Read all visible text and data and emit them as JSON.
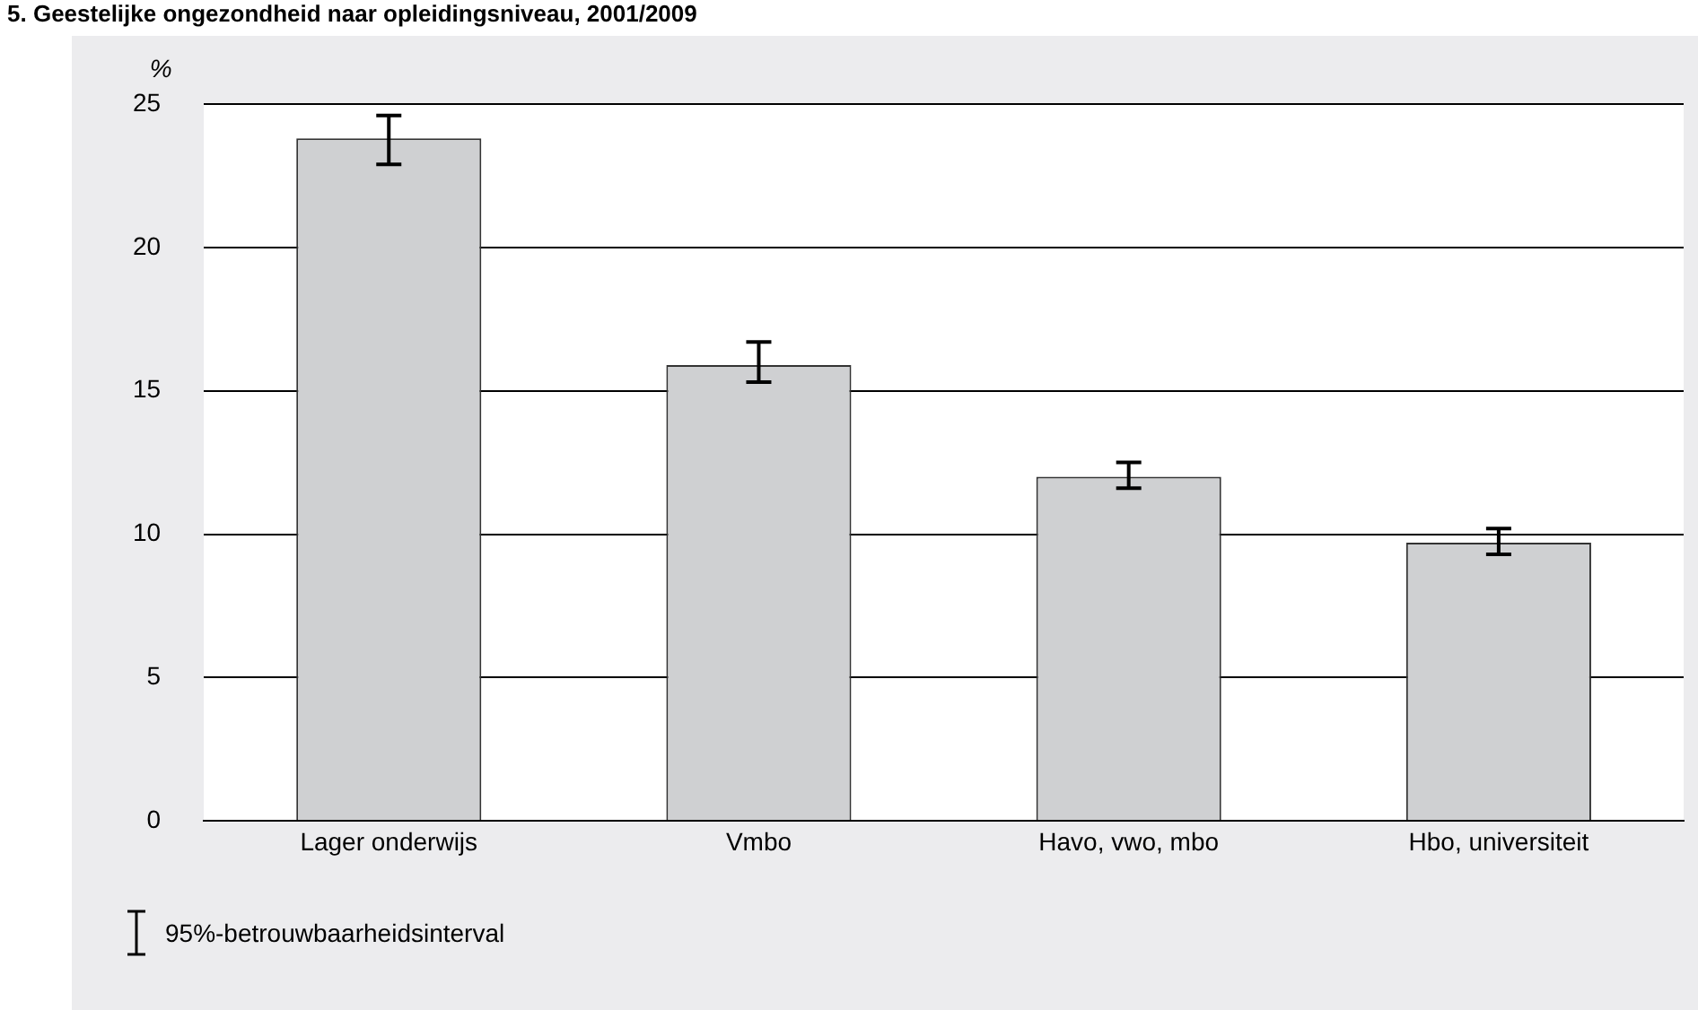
{
  "chart_data": {
    "type": "bar",
    "title": "5. Geestelijke ongezondheid naar opleidingsniveau, 2001/2009",
    "ylabel": "%",
    "categories": [
      "Lager onderwijs",
      "Vmbo",
      "Havo, vwo, mbo",
      "Hbo, universiteit"
    ],
    "values": [
      23.8,
      15.9,
      12.0,
      9.7
    ],
    "color": "#cfd0d2",
    "errors": [
      [
        22.9,
        24.6
      ],
      [
        15.3,
        16.7
      ],
      [
        11.6,
        12.5
      ],
      [
        9.3,
        10.2
      ]
    ],
    "ylim": [
      0,
      25
    ],
    "yticks": [
      0,
      5,
      10,
      15,
      20,
      25
    ],
    "grid": "y",
    "annotations": [
      "95%-betrouwbaarheidsinterval"
    ]
  }
}
